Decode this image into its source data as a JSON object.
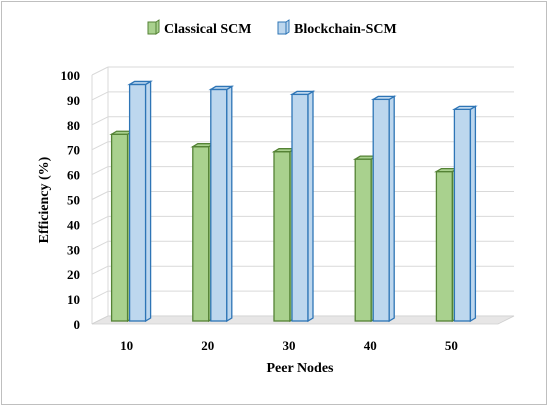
{
  "chart_data": {
    "type": "bar",
    "categories": [
      "10",
      "20",
      "30",
      "40",
      "50"
    ],
    "series": [
      {
        "name": "Classical SCM",
        "values": [
          75,
          70,
          68,
          65,
          60
        ],
        "color": "#a9d18e",
        "edge": "#548235"
      },
      {
        "name": "Blockchain-SCM",
        "values": [
          95,
          93,
          91,
          89,
          85
        ],
        "color": "#bdd7ee",
        "edge": "#2e75b6"
      }
    ],
    "xlabel": "Peer Nodes",
    "ylabel": "Efficiency (%)",
    "ylim": [
      0,
      100
    ],
    "yticks": [
      0,
      10,
      20,
      30,
      40,
      50,
      60,
      70,
      80,
      90,
      100
    ],
    "grid": true,
    "legend": "top-left",
    "style": "3d-clustered-column"
  }
}
